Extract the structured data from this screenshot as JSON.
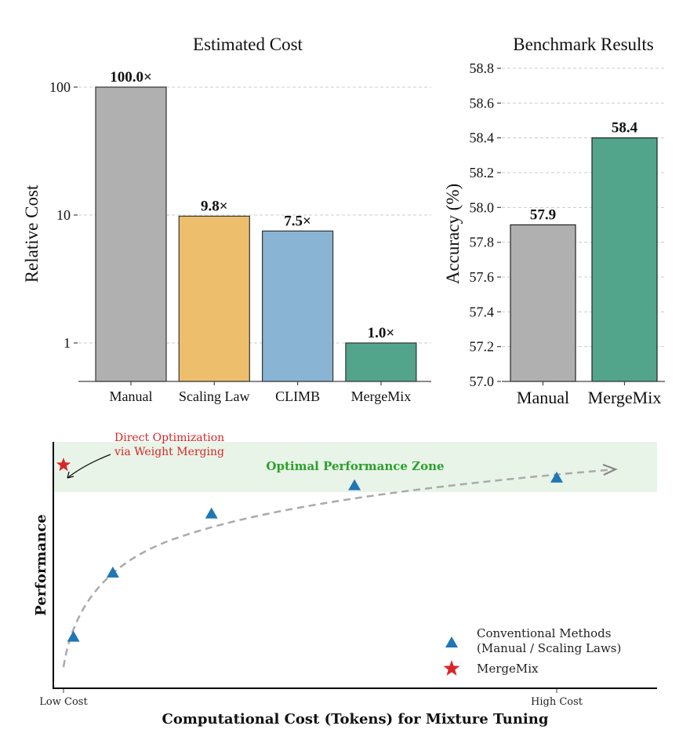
{
  "chart_data": [
    {
      "type": "bar",
      "title": "Estimated Cost",
      "xlabel": "",
      "ylabel": "Relative Cost",
      "yscale": "log",
      "ylim": [
        0.5,
        150
      ],
      "yticks": [
        1,
        10,
        100
      ],
      "ytick_labels": [
        "1",
        "10",
        "100"
      ],
      "grid": "y dashed",
      "categories": [
        "Manual",
        "Scaling Law",
        "CLIMB",
        "MergeMix"
      ],
      "values": [
        100.0,
        9.8,
        7.5,
        1.0
      ],
      "data_labels": [
        "100.0×",
        "9.8×",
        "7.5×",
        "1.0×"
      ],
      "colors": [
        "#b0b0b0",
        "#edbf6d",
        "#8ab4d4",
        "#52a48a"
      ]
    },
    {
      "type": "bar",
      "title": "Benchmark Results",
      "xlabel": "",
      "ylabel": "Accuracy (%)",
      "ylim": [
        57.0,
        58.8
      ],
      "yticks": [
        57.0,
        57.2,
        57.4,
        57.6,
        57.8,
        58.0,
        58.2,
        58.4,
        58.6,
        58.8
      ],
      "ytick_labels": [
        "57.0",
        "57.2",
        "57.4",
        "57.6",
        "57.8",
        "58.0",
        "58.2",
        "58.4",
        "58.6",
        "58.8"
      ],
      "grid": "y dashed",
      "categories": [
        "Manual",
        "MergeMix"
      ],
      "values": [
        57.9,
        58.4
      ],
      "data_labels": [
        "57.9",
        "58.4"
      ],
      "colors": [
        "#b0b0b0",
        "#52a48a"
      ]
    },
    {
      "type": "scatter",
      "title": "",
      "xlabel": "Computational Cost (Tokens) for Mixture Tuning",
      "ylabel": "Performance",
      "xlim": [
        -0.02,
        1.2
      ],
      "ylim": [
        0,
        1
      ],
      "xticks": [
        0,
        1
      ],
      "xtick_labels": [
        "Low Cost",
        "High Cost"
      ],
      "series": [
        {
          "name": "Conventional Methods\n(Manual / Scaling Laws)",
          "label_line1": "Conventional Methods",
          "label_line2": "(Manual / Scaling Laws)",
          "marker": "triangle",
          "color": "#1f77b4",
          "x": [
            0.02,
            0.1,
            0.3,
            0.59,
            1.0
          ],
          "y": [
            0.2,
            0.45,
            0.68,
            0.79,
            0.82
          ]
        },
        {
          "name": "MergeMix",
          "marker": "star",
          "color": "#d62728",
          "x": [
            0.0
          ],
          "y": [
            0.87
          ]
        }
      ],
      "trend_curve": {
        "style": "dashed",
        "color": "#aaaaaa",
        "arrow": true
      },
      "zone": {
        "label": "Optimal Performance Zone",
        "y_range": [
          0.79,
          1.0
        ],
        "color": "#e8f4e8",
        "label_color": "#2ca02c"
      },
      "annotation": {
        "line1": "Direct Optimization",
        "line2": "via Weight Merging",
        "color": "#d62728",
        "points_to": "MergeMix"
      },
      "legend_position": "lower-right"
    }
  ]
}
